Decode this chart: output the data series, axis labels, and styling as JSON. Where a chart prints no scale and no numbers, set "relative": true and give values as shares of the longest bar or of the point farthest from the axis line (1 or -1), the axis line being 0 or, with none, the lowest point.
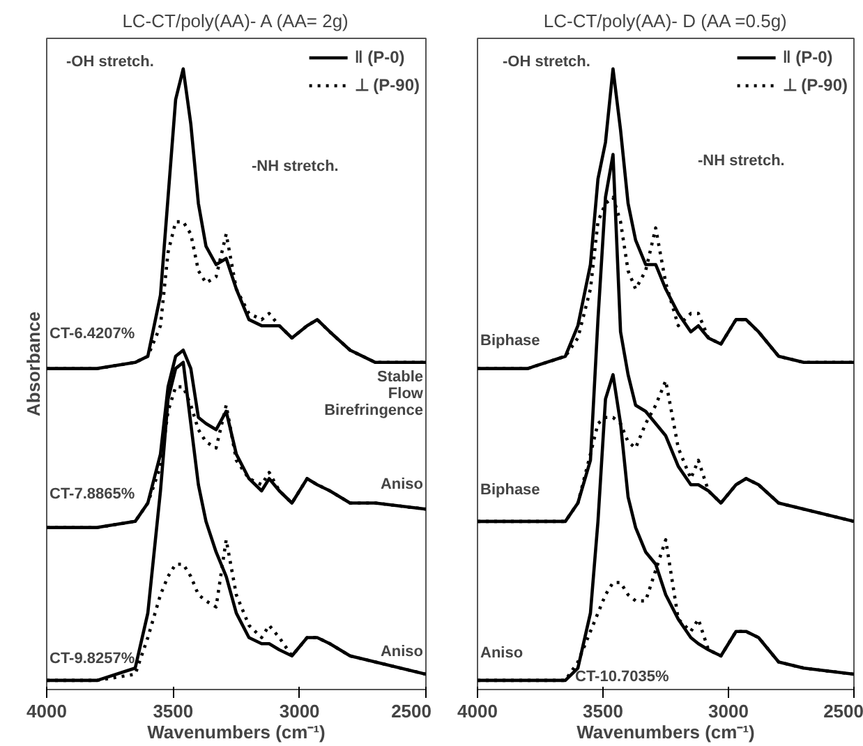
{
  "chart_data": [
    {
      "type": "line",
      "title": "LC-CT/poly(AA)- A (AA= 2g)",
      "xlabel": "Wavenumbers (cm⁻¹)",
      "ylabel": "Absorbance",
      "relative": true,
      "xlim": [
        4000,
        2500
      ],
      "xticks": [
        4000,
        3500,
        3000,
        2500
      ],
      "tick_labels": "x",
      "legend": "top right",
      "grid": false,
      "x": [
        4000,
        3800,
        3650,
        3600,
        3550,
        3520,
        3490,
        3460,
        3430,
        3400,
        3370,
        3330,
        3290,
        3250,
        3200,
        3150,
        3120,
        3080,
        3030,
        2970,
        2930,
        2880,
        2800,
        2700,
        2500
      ],
      "series": [
        {
          "name": "‖ (P-0)",
          "color": "#000000",
          "line_style": "solid",
          "values": [
            0.51,
            0.51,
            0.52,
            0.53,
            0.63,
            0.79,
            0.95,
            1.0,
            0.91,
            0.78,
            0.71,
            0.68,
            0.69,
            0.64,
            0.59,
            0.58,
            0.58,
            0.58,
            0.56,
            0.58,
            0.59,
            0.57,
            0.54,
            0.52,
            0.52
          ]
        },
        {
          "name": "⊥ (P-90)",
          "color": "#000000",
          "line_style": "dotted",
          "values": [
            0.51,
            0.51,
            0.52,
            0.53,
            0.58,
            0.7,
            0.75,
            0.75,
            0.73,
            0.67,
            0.65,
            0.66,
            0.73,
            0.64,
            0.6,
            0.59,
            0.6,
            0.58,
            0.56,
            0.58,
            0.59,
            0.57,
            0.54,
            0.52,
            0.52
          ]
        },
        {
          "color": "#000000",
          "line_style": "solid",
          "values": [
            0.25,
            0.25,
            0.26,
            0.29,
            0.37,
            0.48,
            0.53,
            0.54,
            0.51,
            0.43,
            0.42,
            0.41,
            0.44,
            0.37,
            0.33,
            0.31,
            0.33,
            0.31,
            0.29,
            0.33,
            0.32,
            0.31,
            0.29,
            0.29,
            0.28
          ]
        },
        {
          "color": "#000000",
          "line_style": "dotted",
          "values": [
            0.25,
            0.25,
            0.26,
            0.29,
            0.35,
            0.44,
            0.48,
            0.48,
            0.45,
            0.41,
            0.39,
            0.38,
            0.45,
            0.36,
            0.33,
            0.32,
            0.34,
            0.31,
            0.29,
            0.33,
            0.32,
            0.31,
            0.29,
            0.29,
            0.28
          ]
        },
        {
          "color": "#000000",
          "line_style": "solid",
          "values": [
            0,
            0,
            0.02,
            0.11,
            0.31,
            0.46,
            0.51,
            0.52,
            0.42,
            0.32,
            0.26,
            0.21,
            0.17,
            0.11,
            0.07,
            0.06,
            0.06,
            0.05,
            0.04,
            0.07,
            0.07,
            0.06,
            0.04,
            0.03,
            0.01
          ]
        },
        {
          "color": "#000000",
          "line_style": "dotted",
          "values": [
            0,
            0,
            0.01,
            0.07,
            0.14,
            0.17,
            0.19,
            0.19,
            0.17,
            0.14,
            0.13,
            0.12,
            0.23,
            0.14,
            0.09,
            0.07,
            0.09,
            0.07,
            0.04,
            0.07,
            0.07,
            0.06,
            0.04,
            0.03,
            0.01
          ]
        }
      ],
      "annotations": [
        "-OH stretch.",
        "-NH stretch.",
        "CT-6.4207%",
        "Stable\nFlow\nBirefringence",
        "CT-7.8865%",
        "Aniso",
        "CT-9.8257%",
        "Aniso"
      ]
    },
    {
      "type": "line",
      "title": "LC-CT/poly(AA)- D (AA =0.5g)",
      "xlabel": "Wavenumbers (cm⁻¹)",
      "relative": true,
      "xlim": [
        4000,
        2500
      ],
      "xticks": [
        4000,
        3500,
        3000,
        2500
      ],
      "tick_labels": "x",
      "legend": "top right",
      "grid": false,
      "x": [
        4000,
        3800,
        3650,
        3600,
        3550,
        3520,
        3490,
        3460,
        3430,
        3400,
        3370,
        3330,
        3290,
        3250,
        3200,
        3150,
        3120,
        3080,
        3030,
        2970,
        2930,
        2880,
        2800,
        2700,
        2500
      ],
      "series": [
        {
          "name": "‖ (P-0)",
          "color": "#000000",
          "line_style": "solid",
          "values": [
            0.51,
            0.51,
            0.53,
            0.58,
            0.68,
            0.82,
            0.88,
            1.0,
            0.9,
            0.78,
            0.72,
            0.68,
            0.68,
            0.64,
            0.6,
            0.57,
            0.58,
            0.56,
            0.55,
            0.59,
            0.59,
            0.57,
            0.53,
            0.52,
            0.52
          ]
        },
        {
          "name": "⊥ (P-90)",
          "color": "#000000",
          "line_style": "dotted",
          "values": [
            0.51,
            0.51,
            0.53,
            0.56,
            0.64,
            0.75,
            0.78,
            0.79,
            0.75,
            0.67,
            0.64,
            0.67,
            0.74,
            0.65,
            0.58,
            0.6,
            0.6,
            0.56,
            0.55,
            0.59,
            0.59,
            0.57,
            0.53,
            0.52,
            0.52
          ]
        },
        {
          "color": "#000000",
          "line_style": "solid",
          "values": [
            0.26,
            0.26,
            0.26,
            0.29,
            0.36,
            0.59,
            0.79,
            0.86,
            0.57,
            0.5,
            0.45,
            0.44,
            0.42,
            0.4,
            0.35,
            0.32,
            0.32,
            0.31,
            0.29,
            0.32,
            0.33,
            0.32,
            0.29,
            0.28,
            0.26
          ]
        },
        {
          "color": "#000000",
          "line_style": "dotted",
          "values": [
            0.26,
            0.26,
            0.26,
            0.29,
            0.37,
            0.42,
            0.43,
            0.43,
            0.42,
            0.39,
            0.38,
            0.42,
            0.45,
            0.49,
            0.38,
            0.33,
            0.36,
            0.31,
            0.29,
            0.32,
            0.33,
            0.32,
            0.29,
            0.28,
            0.26
          ]
        },
        {
          "color": "#000000",
          "line_style": "solid",
          "values": [
            0,
            0,
            0,
            0.02,
            0.11,
            0.26,
            0.46,
            0.5,
            0.42,
            0.3,
            0.25,
            0.21,
            0.19,
            0.14,
            0.1,
            0.07,
            0.06,
            0.05,
            0.04,
            0.08,
            0.08,
            0.07,
            0.03,
            0.02,
            0.01
          ]
        },
        {
          "color": "#000000",
          "line_style": "dotted",
          "values": [
            0,
            0,
            0,
            0.03,
            0.08,
            0.11,
            0.14,
            0.16,
            0.16,
            0.14,
            0.13,
            0.13,
            0.18,
            0.23,
            0.1,
            0.08,
            0.1,
            0.05,
            0.04,
            0.08,
            0.08,
            0.07,
            0.03,
            0.02,
            0.01
          ]
        }
      ],
      "annotations": [
        "-OH stretch.",
        "-NH stretch.",
        "Biphase",
        "Biphase",
        "Aniso",
        "CT-10.7035%"
      ]
    }
  ]
}
